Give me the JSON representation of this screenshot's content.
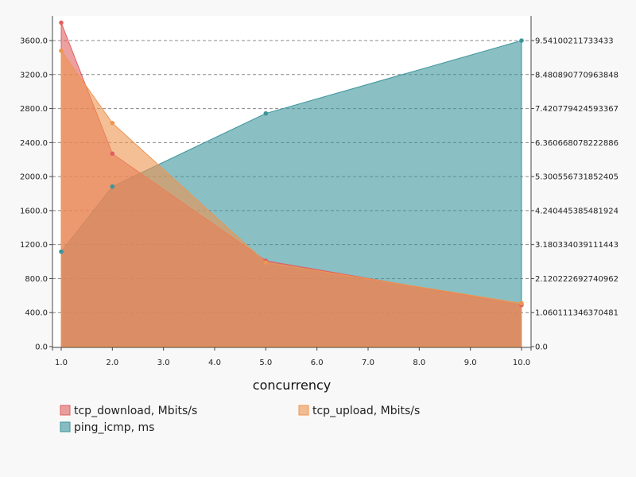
{
  "chart_data": {
    "type": "area",
    "title": "",
    "xlabel": "concurrency",
    "x": [
      1,
      2,
      5,
      10
    ],
    "xlim": [
      1,
      10
    ],
    "x_ticks": [
      "1.0",
      "2.0",
      "3.0",
      "4.0",
      "5.0",
      "6.0",
      "7.0",
      "8.0",
      "9.0",
      "10.0"
    ],
    "y_left": {
      "lim": [
        0,
        3890
      ],
      "ticks": [
        "0.0",
        "400.0",
        "800.0",
        "1200.0",
        "1600.0",
        "2000.0",
        "2400.0",
        "2800.0",
        "3200.0",
        "3600.0"
      ]
    },
    "y_right": {
      "lim": [
        0,
        10.31
      ],
      "ticks": [
        "0.0",
        "1.060111346370481",
        "2.120222692740962",
        "3.180334039111443",
        "4.240445385481924",
        "5.300556731852405",
        "6.360668078222886",
        "7.420779424593367",
        "8.480890770963848",
        "9.54100211733433"
      ]
    },
    "grid": "horizontal-dashed",
    "legend_position": "bottom",
    "series": [
      {
        "name": "tcp_download, Mbits/s",
        "axis": "left",
        "values": [
          3810,
          2270,
          1010,
          490
        ],
        "color": "#e06060"
      },
      {
        "name": "tcp_upload, Mbits/s",
        "axis": "left",
        "values": [
          3480,
          2630,
          990,
          510
        ],
        "color": "#ef9550"
      },
      {
        "name": "ping_icmp, ms",
        "axis": "right",
        "values": [
          2.96,
          4.99,
          7.27,
          9.54
        ],
        "color": "#3c959b"
      }
    ]
  }
}
